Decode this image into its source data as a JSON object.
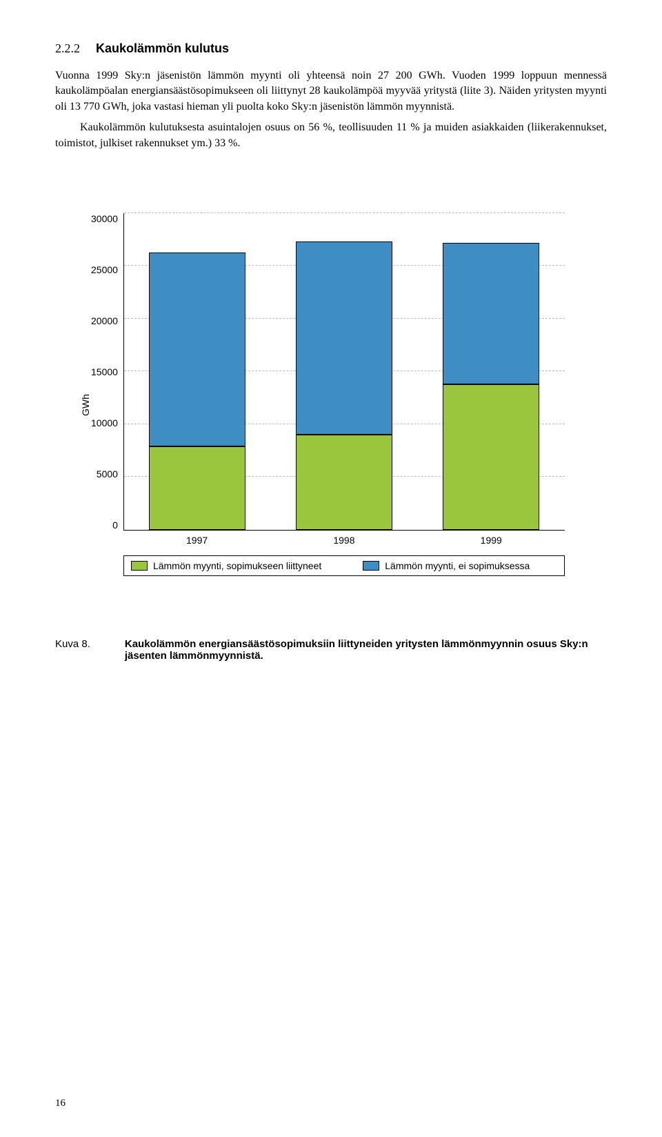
{
  "heading": {
    "number": "2.2.2",
    "title": "Kaukolämmön kulutus"
  },
  "paragraphs": {
    "p1": "Vuonna 1999 Sky:n jäsenistön lämmön myynti oli yhteensä noin 27 200 GWh. Vuoden 1999 loppuun mennessä kaukolämpöalan energiansäästösopimukseen oli liittynyt 28 kaukolämpöä myyvää yritystä (liite 3). Näiden yritysten myynti oli 13 770 GWh, joka vastasi hieman yli puolta koko Sky:n jäsenistön lämmön myynnistä.",
    "p2": "Kaukolämmön kulutuksesta asuintalojen osuus on 56 %, teollisuuden 11 % ja muiden asiakkaiden (liikerakennukset, toimistot, julkiset rakennukset ym.) 33 %."
  },
  "chart": {
    "type": "stacked-bar",
    "ylabel": "GWh",
    "ylim": [
      0,
      30000
    ],
    "ytick_step": 5000,
    "yticks": [
      "30000",
      "25000",
      "20000",
      "15000",
      "10000",
      "5000",
      "0"
    ],
    "grid_color": "#bbbbbb",
    "background_color": "#ffffff",
    "bar_colors": {
      "bottom": "#9ac63e",
      "top": "#3e8ec4"
    },
    "categories": [
      "1997",
      "1998",
      "1999"
    ],
    "series": [
      {
        "year": "1997",
        "bottom": 7900,
        "top": 18400
      },
      {
        "year": "1998",
        "bottom": 9000,
        "top": 18300
      },
      {
        "year": "1999",
        "bottom": 13770,
        "top": 13430
      }
    ],
    "legend": {
      "a": "Lämmön myynti, sopimukseen liittyneet",
      "b": "Lämmön myynti, ei sopimuksessa"
    }
  },
  "caption": {
    "label": "Kuva 8.",
    "text": "Kaukolämmön energiansäästösopimuksiin liittyneiden yritysten lämmönmyynnin osuus Sky:n jäsenten lämmönmyynnistä."
  },
  "page_number": "16"
}
